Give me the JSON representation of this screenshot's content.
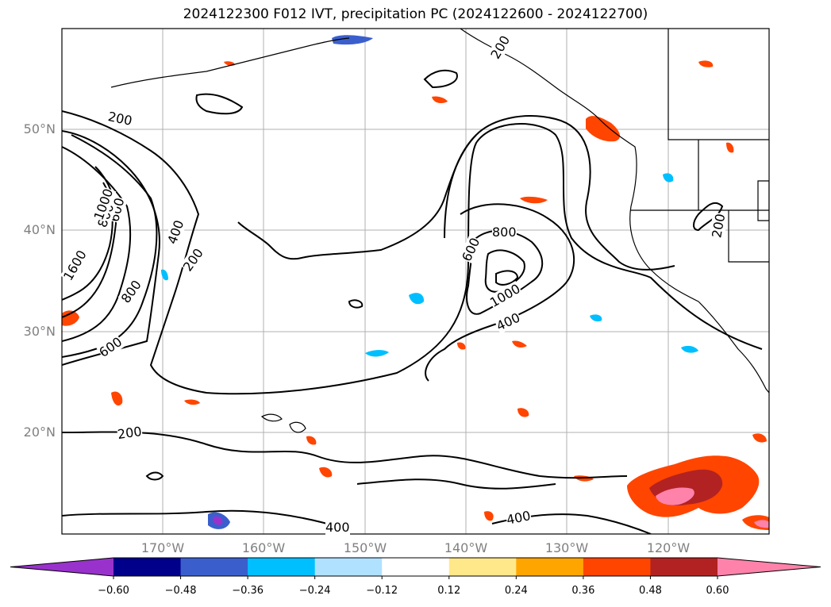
{
  "title": "2024122300 F012 IVT, precipitation PC (2024122600 - 2024122700)",
  "map": {
    "extent": {
      "lon_min": -180,
      "lon_max": -110,
      "lat_min": 10,
      "lat_max": 60
    },
    "gridlines": true,
    "lat_labels": [
      "50°N",
      "40°N",
      "30°N",
      "20°N"
    ],
    "lon_labels": [
      "170°W",
      "160°W",
      "150°W",
      "140°W",
      "130°W",
      "120°W"
    ],
    "ivt_contour_labels": [
      "200",
      "200",
      "200",
      "200",
      "200",
      "400",
      "400",
      "400",
      "400",
      "600",
      "600",
      "600",
      "800",
      "800",
      "800",
      "1000",
      "1000",
      "1600"
    ],
    "colors": {
      "coast": "#000000",
      "grid": "#b0b0b0",
      "contour": "#000000"
    }
  },
  "colorbar": {
    "ticks": [
      "−0.60",
      "−0.48",
      "−0.36",
      "−0.24",
      "−0.12",
      "0.12",
      "0.24",
      "0.36",
      "0.48",
      "0.60"
    ],
    "colors": [
      "#9932CC",
      "#00008B",
      "#3A5FCD",
      "#00BFFF",
      "#B0E2FF",
      "#FFFFFF",
      "#FFE88A",
      "#FFA500",
      "#FF4500",
      "#B22222",
      "#FF82AB"
    ],
    "extend": "both"
  }
}
